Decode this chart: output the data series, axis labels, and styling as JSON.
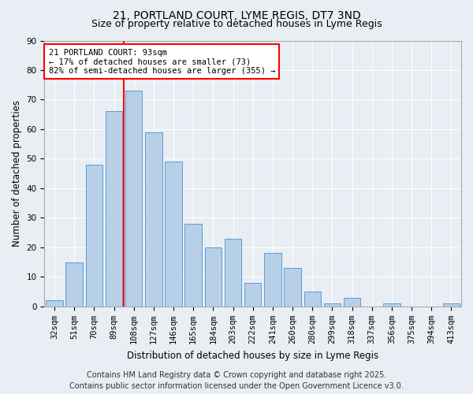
{
  "title_line1": "21, PORTLAND COURT, LYME REGIS, DT7 3ND",
  "title_line2": "Size of property relative to detached houses in Lyme Regis",
  "xlabel": "Distribution of detached houses by size in Lyme Regis",
  "ylabel": "Number of detached properties",
  "categories": [
    "32sqm",
    "51sqm",
    "70sqm",
    "89sqm",
    "108sqm",
    "127sqm",
    "146sqm",
    "165sqm",
    "184sqm",
    "203sqm",
    "222sqm",
    "241sqm",
    "260sqm",
    "280sqm",
    "299sqm",
    "318sqm",
    "337sqm",
    "356sqm",
    "375sqm",
    "394sqm",
    "413sqm"
  ],
  "bar_heights": [
    2,
    15,
    48,
    66,
    73,
    59,
    49,
    28,
    20,
    23,
    8,
    18,
    13,
    5,
    1,
    3,
    0,
    1,
    0,
    0,
    1
  ],
  "bar_color": "#b8cfe8",
  "bar_edge_color": "#5b9bd5",
  "vline_x": 3.5,
  "vline_color": "red",
  "annotation_text": "21 PORTLAND COURT: 93sqm\n← 17% of detached houses are smaller (73)\n82% of semi-detached houses are larger (355) →",
  "annotation_box_color": "white",
  "annotation_box_edge_color": "red",
  "ylim": [
    0,
    90
  ],
  "yticks": [
    0,
    10,
    20,
    30,
    40,
    50,
    60,
    70,
    80,
    90
  ],
  "footer_line1": "Contains HM Land Registry data © Crown copyright and database right 2025.",
  "footer_line2": "Contains public sector information licensed under the Open Government Licence v3.0.",
  "bg_color": "#e8eef4",
  "plot_bg_color": "#e8eef4",
  "title_fontsize": 10,
  "subtitle_fontsize": 9,
  "axis_label_fontsize": 8.5,
  "tick_fontsize": 7.5,
  "annotation_fontsize": 7.5,
  "footer_fontsize": 7
}
